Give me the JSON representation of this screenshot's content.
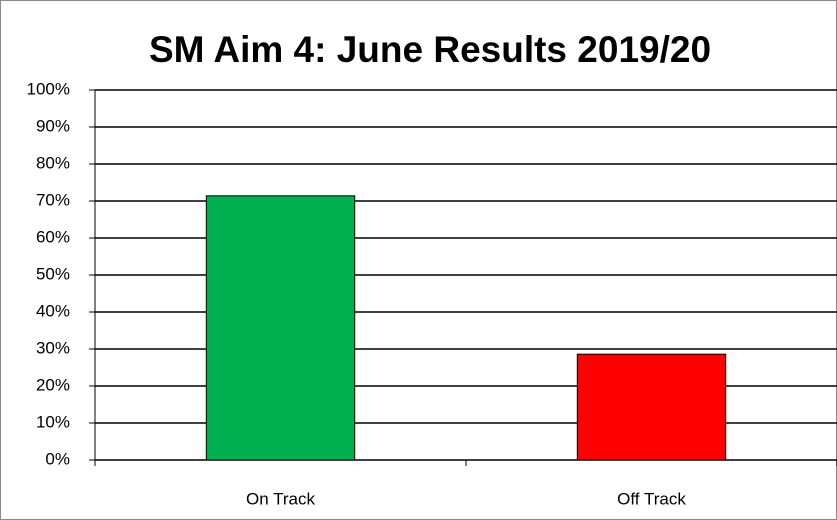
{
  "chart_data": {
    "type": "bar",
    "title": "SM Aim 4: June Results 2019/20",
    "categories": [
      "On Track",
      "Off Track"
    ],
    "values": [
      71.4,
      28.6
    ],
    "colors": [
      "#00b050",
      "#ff0000"
    ],
    "ylim": [
      0,
      100
    ],
    "yticks": [
      {
        "value": 0,
        "label": "0%"
      },
      {
        "value": 10,
        "label": "10%"
      },
      {
        "value": 20,
        "label": "20%"
      },
      {
        "value": 30,
        "label": "30%"
      },
      {
        "value": 40,
        "label": "40%"
      },
      {
        "value": 50,
        "label": "50%"
      },
      {
        "value": 60,
        "label": "60%"
      },
      {
        "value": 70,
        "label": "70%"
      },
      {
        "value": 80,
        "label": "80%"
      },
      {
        "value": 90,
        "label": "90%"
      },
      {
        "value": 100,
        "label": "100%"
      }
    ],
    "grid": true
  }
}
